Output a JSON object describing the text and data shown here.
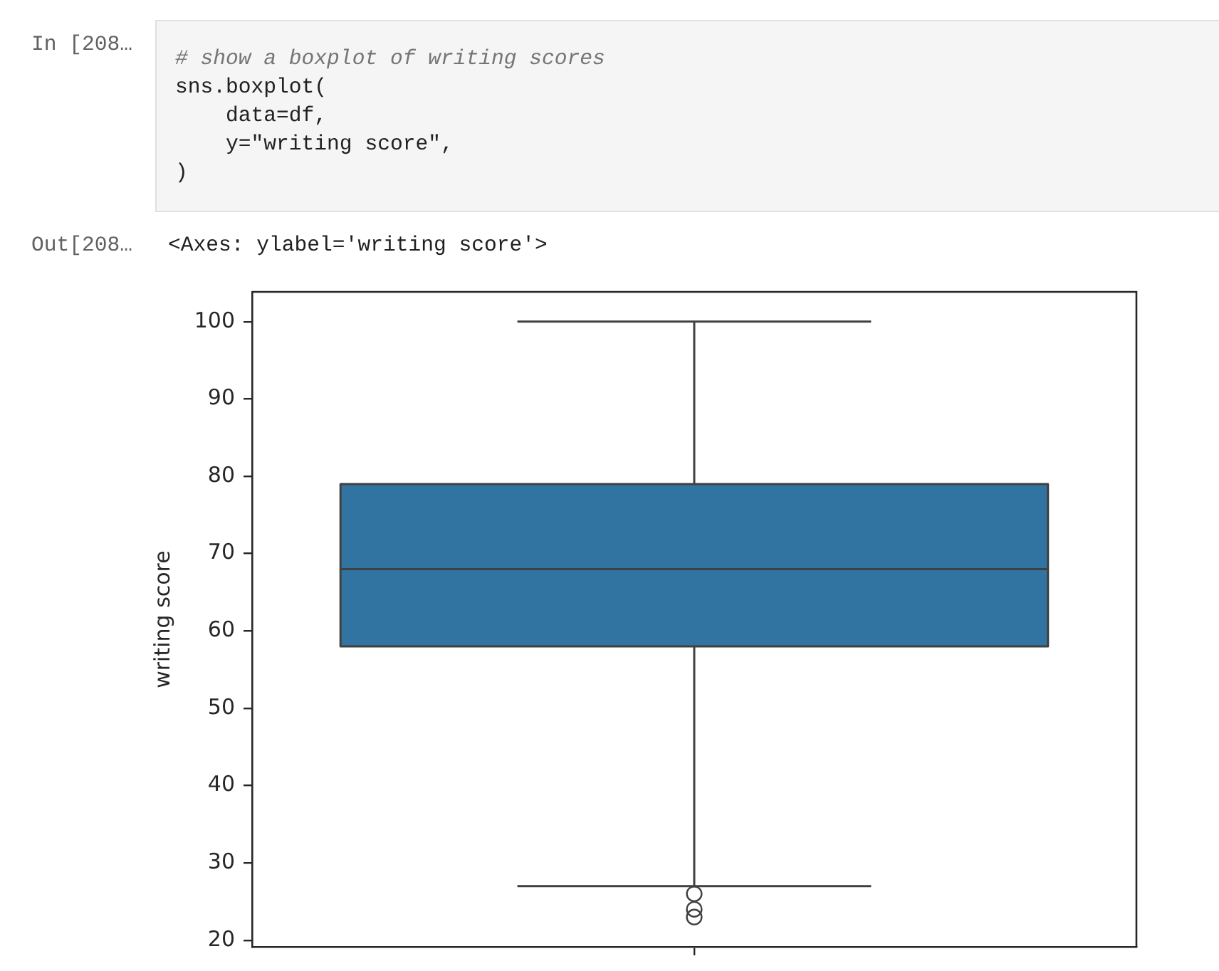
{
  "chart_data": {
    "type": "box",
    "ylabel": "writing score",
    "categories": [
      null
    ],
    "tick_labels": "y",
    "boxes": [
      {
        "low": 27,
        "q1": 58,
        "median": 68,
        "q3": 79,
        "high": 100,
        "outliers": [
          26,
          24,
          23
        ]
      }
    ],
    "color": "#3274a1",
    "ylim": [
      19.15,
      103.85
    ],
    "yticks": [
      20,
      30,
      40,
      50,
      60,
      70,
      80,
      90,
      100
    ],
    "annotations": [
      "In [208…",
      "# show a boxplot of writing scores\nsns.boxplot(\n    data=df,\n    y=\"writing score\",\n)",
      "Out[208…",
      "<Axes: ylabel='writing score'>"
    ]
  }
}
